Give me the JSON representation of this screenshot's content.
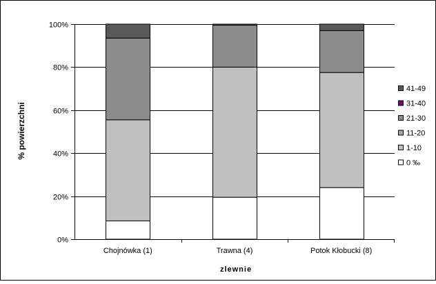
{
  "colors": {
    "background": "#ffffff",
    "grid": "#000000",
    "bar_stroke": "#000000"
  },
  "chart_data": {
    "type": "bar",
    "stacked": true,
    "percent": true,
    "title": "",
    "xlabel": "zlewnie",
    "ylabel": "% powierzchni",
    "ylim": [
      0,
      100
    ],
    "yticks": [
      "0%",
      "20%",
      "40%",
      "60%",
      "80%",
      "100%"
    ],
    "grid": true,
    "legend_position": "right",
    "categories": [
      "Chojnówka (1)",
      "Trawna (4)",
      "Potok Kłobucki (8)"
    ],
    "series": [
      {
        "name": "0 ‰",
        "color": "#ffffff",
        "values": [
          8.5,
          19.5,
          24
        ]
      },
      {
        "name": "1-10",
        "color": "#c0c0c0",
        "values": [
          47,
          60.5,
          53.5
        ]
      },
      {
        "name": "11-20",
        "color": "#a6a6a6",
        "values": [
          0,
          0,
          0
        ]
      },
      {
        "name": "21-30",
        "color": "#8c8c8c",
        "values": [
          38,
          19.5,
          19.5
        ]
      },
      {
        "name": "31-40",
        "color": "#800080",
        "values": [
          0,
          0,
          0
        ]
      },
      {
        "name": "41-49",
        "color": "#595959",
        "values": [
          6.5,
          0.5,
          3
        ]
      }
    ],
    "legend_order": [
      "41-49",
      "31-40",
      "21-30",
      "11-20",
      "1-10",
      "0 ‰"
    ]
  }
}
